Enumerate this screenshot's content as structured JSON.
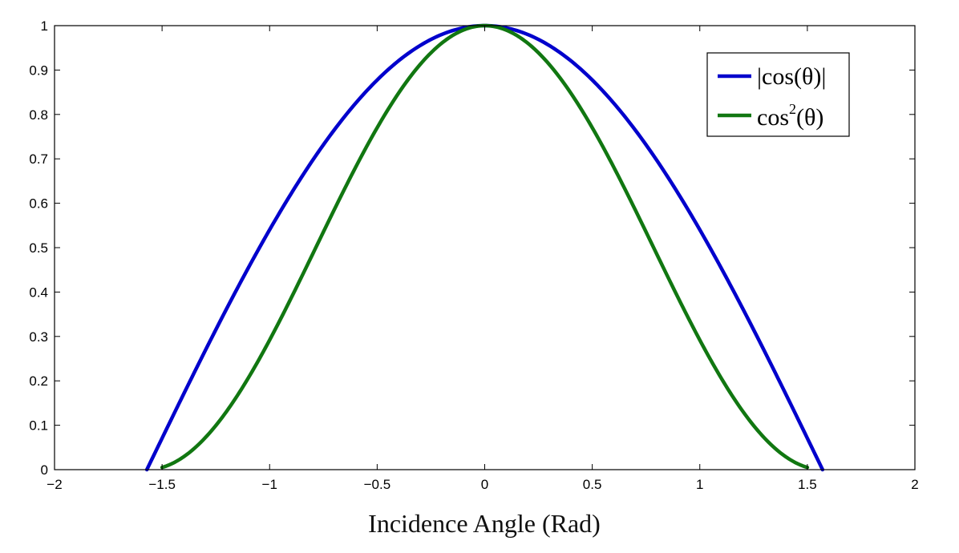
{
  "chart_data": {
    "type": "line",
    "title": "",
    "xlabel": "Incidence Angle (Rad)",
    "ylabel": "",
    "xlim": [
      -2,
      2
    ],
    "ylim": [
      0,
      1
    ],
    "x_ticks": [
      -2,
      -1.5,
      -1,
      -0.5,
      0,
      0.5,
      1,
      1.5,
      2
    ],
    "x_tick_labels": [
      "−2",
      "−1.5",
      "−1",
      "−0.5",
      "0",
      "0.5",
      "1",
      "1.5",
      "2"
    ],
    "y_ticks": [
      0,
      0.1,
      0.2,
      0.3,
      0.4,
      0.5,
      0.6,
      0.7,
      0.8,
      0.9,
      1
    ],
    "y_tick_labels": [
      "0",
      "0.1",
      "0.2",
      "0.3",
      "0.4",
      "0.5",
      "0.6",
      "0.7",
      "0.8",
      "0.9",
      "1"
    ],
    "grid": false,
    "legend_position": "top-right",
    "series": [
      {
        "name": "|cos(θ)|",
        "color": "#0000cc",
        "x": [
          -1.5708,
          -1.4,
          -1.2,
          -1.0,
          -0.8,
          -0.6,
          -0.4,
          -0.2,
          0,
          0.2,
          0.4,
          0.6,
          0.8,
          1.0,
          1.2,
          1.4,
          1.5708
        ],
        "y": [
          0,
          0.17,
          0.362,
          0.54,
          0.697,
          0.825,
          0.921,
          0.98,
          1,
          0.98,
          0.921,
          0.825,
          0.697,
          0.54,
          0.362,
          0.17,
          0
        ]
      },
      {
        "name_base": "cos",
        "name_sup": "2",
        "name_tail": "(θ)",
        "color": "#117711",
        "x": [
          -1.5,
          -1.4,
          -1.2,
          -1.0,
          -0.8,
          -0.6,
          -0.4,
          -0.2,
          0,
          0.2,
          0.4,
          0.6,
          0.8,
          1.0,
          1.2,
          1.4,
          1.5
        ],
        "y": [
          0.005,
          0.029,
          0.131,
          0.292,
          0.485,
          0.681,
          0.848,
          0.961,
          1,
          0.961,
          0.848,
          0.681,
          0.485,
          0.292,
          0.131,
          0.029,
          0.005
        ]
      }
    ]
  }
}
